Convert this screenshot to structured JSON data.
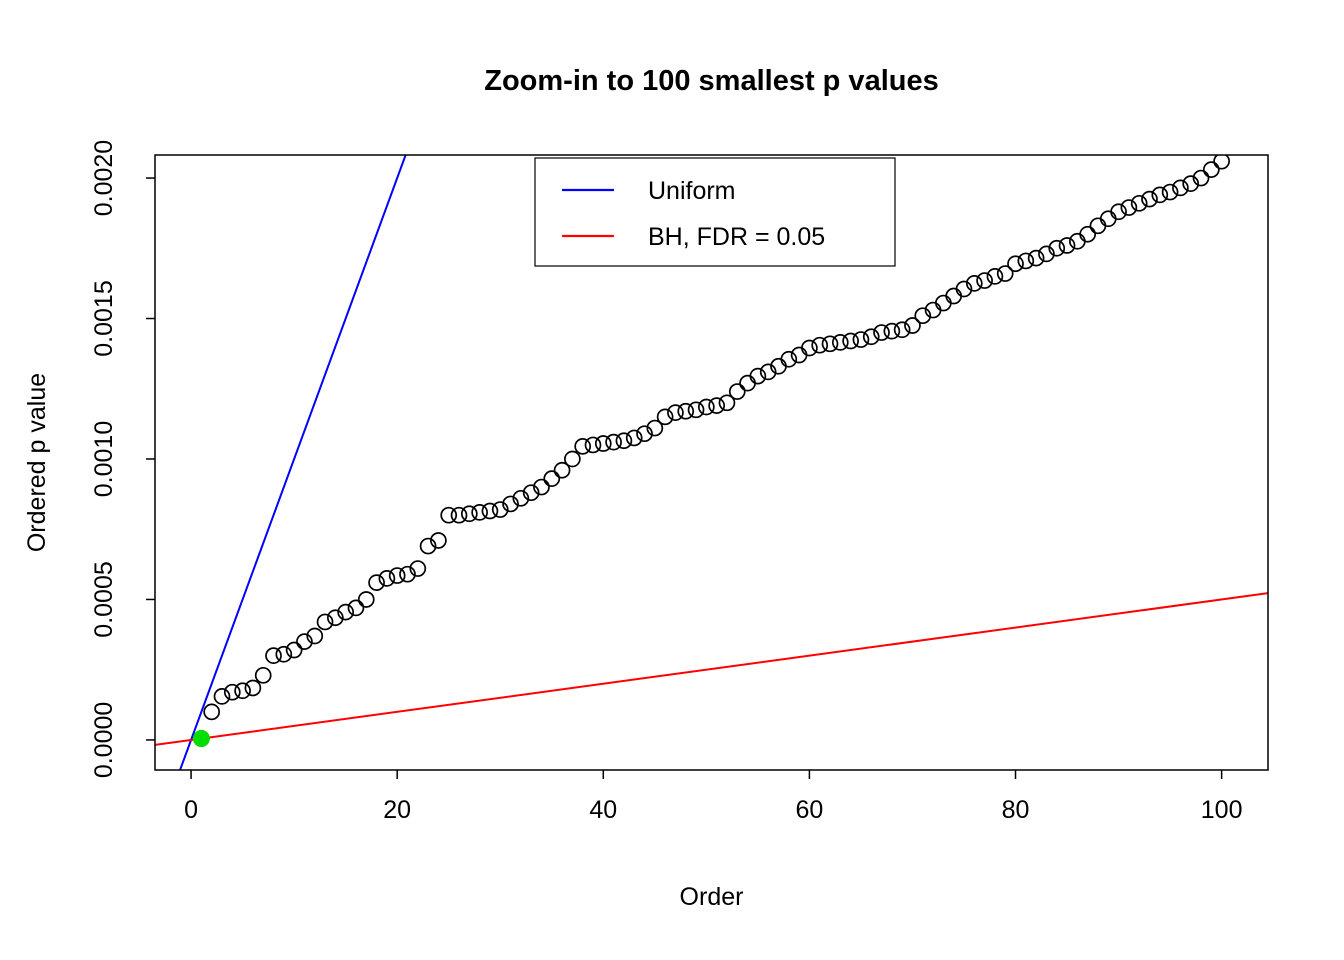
{
  "figure": {
    "background": "#ffffff",
    "foreground": "#000000"
  },
  "chart_data": {
    "type": "scatter",
    "title": "Zoom-in to 100 smallest p values",
    "xlabel": "Order",
    "ylabel": "Ordered p value",
    "xlim": [
      -3.5,
      104.5
    ],
    "ylim": [
      -0.000107,
      0.002082
    ],
    "x_ticks": [
      0,
      20,
      40,
      60,
      80,
      100
    ],
    "x_tick_labels": [
      "0",
      "20",
      "40",
      "60",
      "80",
      "100"
    ],
    "y_ticks": [
      0.0,
      0.0005,
      0.001,
      0.0015,
      0.002
    ],
    "y_tick_labels": [
      "0.0000",
      "0.0005",
      "0.0010",
      "0.0015",
      "0.0020"
    ],
    "grid": false,
    "legend": {
      "position": "top-center",
      "entries": [
        {
          "label": "Uniform",
          "color": "#0000FF",
          "type": "line"
        },
        {
          "label": "BH, FDR = 0.05",
          "color": "#FF0000",
          "type": "line"
        }
      ]
    },
    "lines": [
      {
        "name": "uniform",
        "color": "#0000FF",
        "slope": 0.0001,
        "intercept": 0
      },
      {
        "name": "bh-threshold",
        "color": "#FF0000",
        "slope": 5e-06,
        "intercept": 0
      }
    ],
    "points": {
      "x_description": "order 1 to 100",
      "marker": "open-circle",
      "color": "#000000",
      "ordered_p_values": [
        5e-06,
        0.0001,
        0.000155,
        0.00017,
        0.000175,
        0.000185,
        0.00023,
        0.0003,
        0.000305,
        0.00032,
        0.00035,
        0.00037,
        0.00042,
        0.000435,
        0.000455,
        0.00047,
        0.0005,
        0.00056,
        0.000575,
        0.000585,
        0.00059,
        0.00061,
        0.00069,
        0.00071,
        0.0008,
        0.0008,
        0.000805,
        0.00081,
        0.000815,
        0.00082,
        0.00084,
        0.00086,
        0.00088,
        0.0009,
        0.00093,
        0.00096,
        0.001,
        0.001045,
        0.00105,
        0.001055,
        0.00106,
        0.001065,
        0.001075,
        0.00109,
        0.00111,
        0.00115,
        0.001165,
        0.00117,
        0.001175,
        0.001185,
        0.00119,
        0.0012,
        0.00124,
        0.00127,
        0.001295,
        0.00131,
        0.00133,
        0.001355,
        0.00137,
        0.001395,
        0.001405,
        0.00141,
        0.001415,
        0.00142,
        0.001425,
        0.001435,
        0.00145,
        0.001455,
        0.00146,
        0.001475,
        0.00151,
        0.00153,
        0.001555,
        0.00158,
        0.001605,
        0.001625,
        0.001635,
        0.00165,
        0.00166,
        0.001695,
        0.001705,
        0.001715,
        0.00173,
        0.00175,
        0.00176,
        0.001775,
        0.0018,
        0.00183,
        0.001855,
        0.00188,
        0.001895,
        0.00191,
        0.001925,
        0.00194,
        0.00195,
        0.001965,
        0.00198,
        0.002,
        0.00203,
        0.00206
      ]
    },
    "highlight_point": {
      "x": 1,
      "y": 5e-06,
      "color": "#00DD00",
      "marker": "filled-circle",
      "meaning": "significant under BH"
    }
  }
}
